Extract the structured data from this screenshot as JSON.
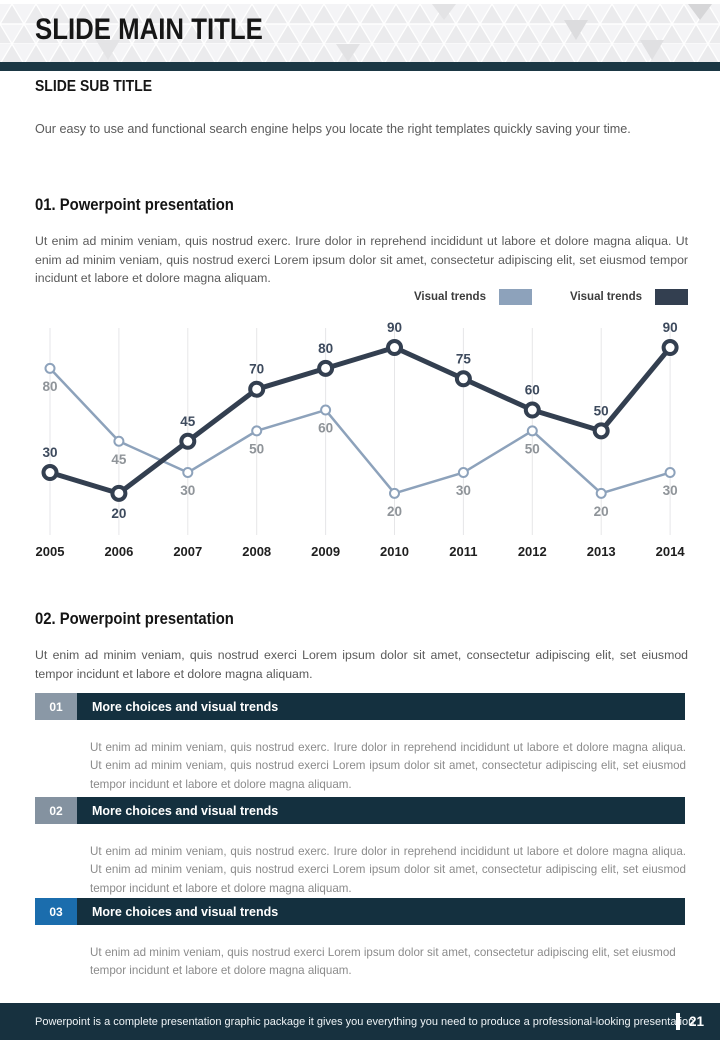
{
  "header": {
    "main_title": "SLIDE MAIN TITLE"
  },
  "sub": {
    "title": "SLIDE SUB TITLE",
    "intro": "Our easy to use and functional search engine helps you locate the right templates quickly saving your time."
  },
  "section01": {
    "title": "01. Powerpoint presentation",
    "body": "Ut enim ad minim veniam, quis nostrud exerc. Irure dolor in reprehend incididunt ut labore et dolore magna aliqua. Ut enim ad minim veniam, quis nostrud exerci  Lorem ipsum dolor sit amet, consectetur adipiscing elit, set eiusmod tempor incidunt et labore et dolore magna aliquam."
  },
  "chart_data": {
    "type": "line",
    "title": "",
    "x": [
      2005,
      2006,
      2007,
      2008,
      2009,
      2010,
      2011,
      2012,
      2013,
      2014
    ],
    "ylim": [
      0,
      100
    ],
    "grid": "vertical-only",
    "gridline_color": "#e6e6e8",
    "legend_position": "top-right",
    "axis_label_color": "#1f1f1f",
    "series": [
      {
        "name": "Visual trends",
        "color": "#8da2bb",
        "values": [
          80,
          45,
          30,
          50,
          60,
          20,
          30,
          50,
          20,
          30
        ],
        "label_color": "#8f9499",
        "label_positions": [
          "below",
          "below",
          "below",
          "below",
          "below",
          "below",
          "below",
          "below",
          "below",
          "below"
        ],
        "line_width": 2.5,
        "marker_radius": 4.5,
        "marker_stroke": 2
      },
      {
        "name": "Visual trends",
        "color": "#333f50",
        "values": [
          30,
          20,
          45,
          70,
          80,
          90,
          75,
          60,
          50,
          90
        ],
        "label_color": "#3d4a5d",
        "label_positions": [
          "above",
          "below",
          "above",
          "above",
          "above",
          "above",
          "above",
          "above",
          "above",
          "above"
        ],
        "line_width": 5,
        "marker_radius": 6.5,
        "marker_stroke": 4
      }
    ]
  },
  "section02": {
    "title": "02. Powerpoint presentation",
    "body": "Ut enim ad minim veniam, quis nostrud exerci  Lorem ipsum dolor sit amet, consectetur adipiscing elit, set eiusmod tempor incidunt et labore et dolore magna aliquam."
  },
  "list": {
    "items": [
      {
        "number": "01",
        "badge_color": "#8a98a6",
        "title": "More choices and visual trends",
        "body": "Ut enim ad minim veniam, quis nostrud exerc. Irure dolor in reprehend incididunt ut labore et dolore magna aliqua. Ut enim ad minim veniam, quis nostrud exerci  Lorem ipsum dolor sit amet, consectetur adipiscing elit, set eiusmod tempor incidunt et labore et dolore magna aliquam."
      },
      {
        "number": "02",
        "badge_color": "#8492a0",
        "title": "More choices and visual trends",
        "body": "Ut enim ad minim veniam, quis nostrud exerc. Irure dolor in reprehend incididunt ut labore et dolore magna aliqua. Ut enim ad minim veniam, quis nostrud exerci  Lorem ipsum dolor sit amet, consectetur adipiscing elit, set eiusmod tempor incidunt et labore et dolore magna aliquam."
      },
      {
        "number": "03",
        "badge_color": "#1b6dad",
        "title": "More choices and visual trends",
        "body": "Ut enim ad minim veniam, quis nostrud exerci  Lorem ipsum dolor sit amet, consectetur adipiscing elit, set eiusmod tempor incidunt et labore et dolore magna aliquam."
      }
    ]
  },
  "footer": {
    "text": "Powerpoint is a complete presentation graphic package it gives you everything you need to produce a professional-looking presentation",
    "page_number": "21"
  }
}
